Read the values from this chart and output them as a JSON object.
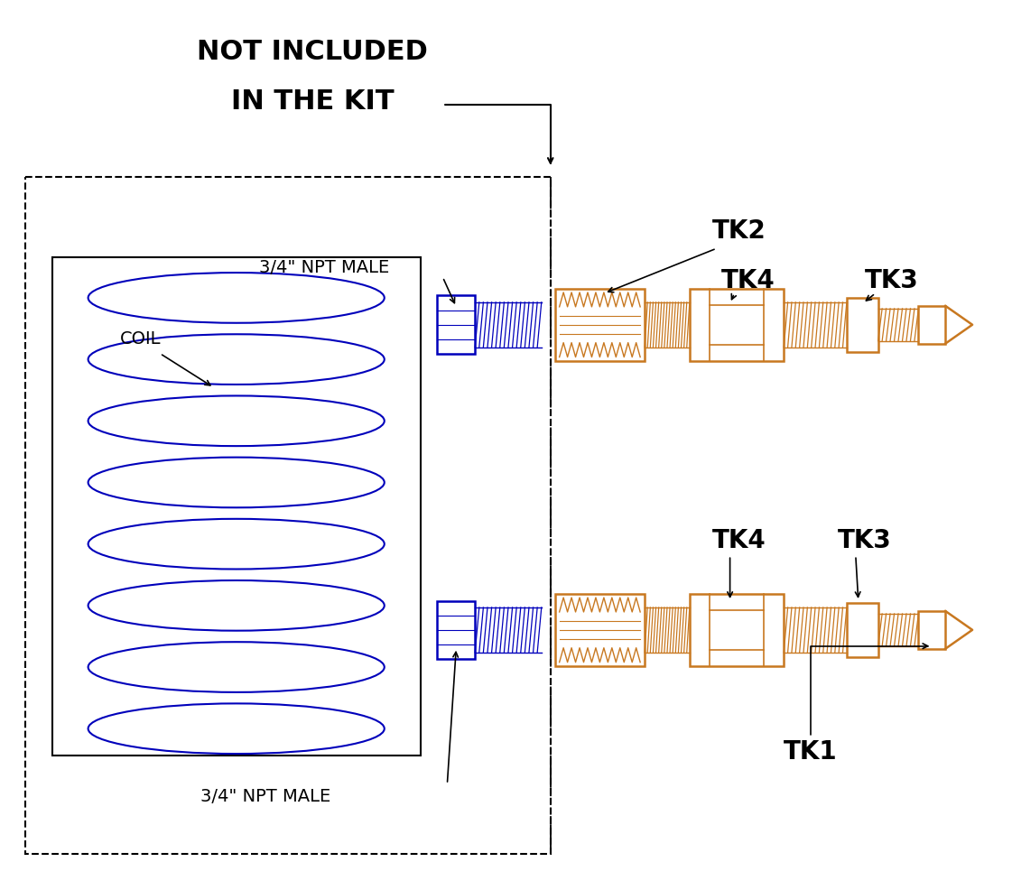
{
  "bg_color": "#ffffff",
  "blue": "#0000bb",
  "orange": "#c87820",
  "black": "#000000",
  "fig_width": 11.21,
  "fig_height": 9.87,
  "not_included_lines": [
    "NOT INCLUDED",
    "IN THE KIT"
  ],
  "npt_top_label": "3/4\" NPT MALE",
  "npt_bot_label": "3/4\" NPT MALE",
  "coil_label": "COIL",
  "tk_labels": [
    "TK2",
    "TK4",
    "TK3",
    "TK4",
    "TK3",
    "TK1"
  ],
  "n_coil_loops": 8,
  "n_thread_teeth": 16,
  "n_orange_thread_teeth": 16,
  "n_zigzag": 10
}
